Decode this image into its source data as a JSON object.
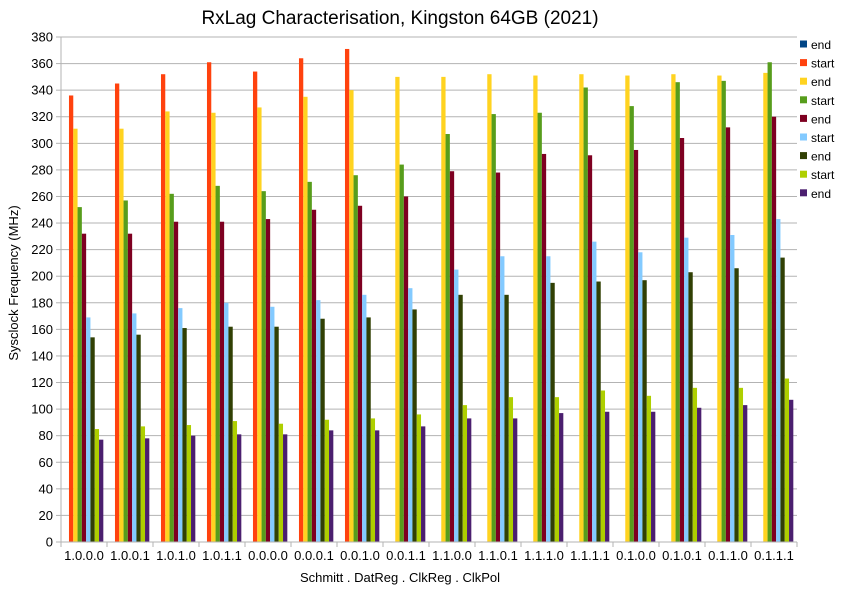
{
  "chart_data": {
    "type": "bar",
    "title": "RxLag Characterisation, Kingston 64GB (2021)",
    "xlabel": "Schmitt . DatReg . ClkReg . ClkPol",
    "ylabel": "Sysclock Frequency (MHz)",
    "ylim": [
      0,
      380
    ],
    "yticks": [
      0,
      20,
      40,
      60,
      80,
      100,
      120,
      140,
      160,
      180,
      200,
      220,
      240,
      260,
      280,
      300,
      320,
      340,
      360,
      380
    ],
    "grid": true,
    "legend_position": "right",
    "categories": [
      "1.0.0.0",
      "1.0.0.1",
      "1.0.1.0",
      "1.0.1.1",
      "0.0.0.0",
      "0.0.0.1",
      "0.0.1.0",
      "0.0.1.1",
      "1.1.0.0",
      "1.1.0.1",
      "1.1.1.0",
      "1.1.1.1",
      "0.1.0.0",
      "0.1.0.1",
      "0.1.1.0",
      "0.1.1.1"
    ],
    "series": [
      {
        "name": "end",
        "color": "#004586",
        "values": [
          null,
          null,
          null,
          null,
          null,
          null,
          null,
          null,
          null,
          null,
          null,
          null,
          null,
          null,
          null,
          null
        ]
      },
      {
        "name": "start",
        "color": "#ff420e",
        "values": [
          336,
          345,
          352,
          361,
          354,
          364,
          371,
          null,
          null,
          null,
          null,
          null,
          null,
          null,
          null,
          null
        ]
      },
      {
        "name": "end",
        "color": "#ffd320",
        "values": [
          311,
          311,
          324,
          323,
          327,
          335,
          340,
          350,
          350,
          352,
          351,
          352,
          351,
          352,
          351,
          353
        ]
      },
      {
        "name": "start",
        "color": "#579d1c",
        "values": [
          252,
          257,
          262,
          268,
          264,
          271,
          276,
          284,
          307,
          322,
          323,
          342,
          328,
          346,
          347,
          361
        ]
      },
      {
        "name": "end",
        "color": "#7e0021",
        "values": [
          232,
          232,
          241,
          241,
          243,
          250,
          253,
          260,
          279,
          278,
          292,
          291,
          295,
          304,
          312,
          320
        ]
      },
      {
        "name": "start",
        "color": "#83caff",
        "values": [
          169,
          172,
          176,
          180,
          177,
          182,
          186,
          191,
          205,
          215,
          215,
          226,
          218,
          229,
          231,
          243
        ]
      },
      {
        "name": "end",
        "color": "#314004",
        "values": [
          154,
          156,
          161,
          162,
          162,
          168,
          169,
          175,
          186,
          186,
          195,
          196,
          197,
          203,
          206,
          214
        ]
      },
      {
        "name": "start",
        "color": "#aecf00",
        "values": [
          85,
          87,
          88,
          91,
          89,
          92,
          93,
          96,
          103,
          109,
          109,
          114,
          110,
          116,
          116,
          123
        ]
      },
      {
        "name": "end",
        "color": "#4b1f6f",
        "values": [
          77,
          78,
          80,
          81,
          81,
          84,
          84,
          87,
          93,
          93,
          97,
          98,
          98,
          101,
          103,
          107
        ]
      }
    ]
  }
}
